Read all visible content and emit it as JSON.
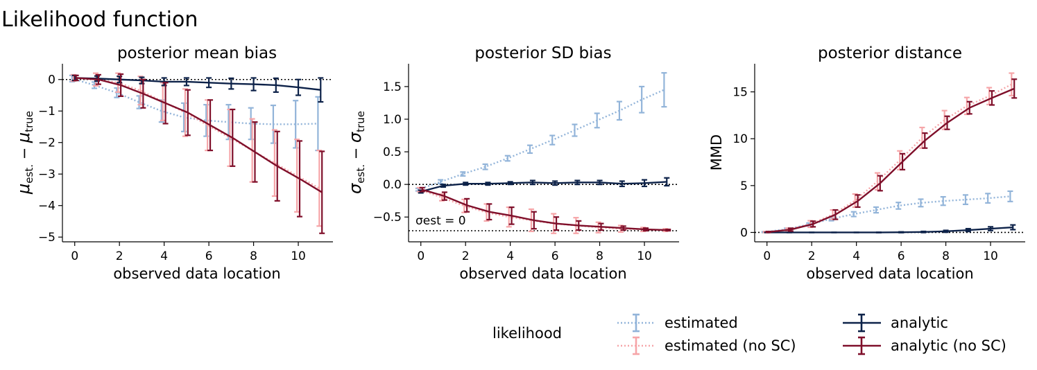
{
  "figure_title": "Likelihood function",
  "colors": {
    "estimated": "#92b4d9",
    "estimated_no_sc": "#f6a5a8",
    "analytic": "#0d2249",
    "analytic_no_sc": "#7f0f2a"
  },
  "legend": {
    "title": "likelihood",
    "entries": [
      {
        "key": "estimated",
        "label": "estimated"
      },
      {
        "key": "estimated_no_sc",
        "label": "estimated (no SC)"
      },
      {
        "key": "analytic",
        "label": "analytic"
      },
      {
        "key": "analytic_no_sc",
        "label": "analytic (no SC)"
      }
    ]
  },
  "chart_data": [
    {
      "id": "mean",
      "type": "line",
      "title": "posterior mean bias",
      "xlabel": "observed data location",
      "ylabel": "μest. − μtrue",
      "xlim": [
        -0.55,
        11.55
      ],
      "ylim": [
        -5.15,
        0.5
      ],
      "xticks": [
        0,
        2,
        4,
        6,
        8,
        10
      ],
      "yticks": [
        0,
        -1,
        -2,
        -3,
        -4,
        -5
      ],
      "hline": 0,
      "x": [
        0,
        1,
        2,
        3,
        4,
        5,
        6,
        7,
        8,
        9,
        10,
        11
      ],
      "series": [
        {
          "key": "estimated",
          "offset": -0.12,
          "values": [
            0.03,
            -0.18,
            -0.42,
            -0.72,
            -1.0,
            -1.2,
            -1.3,
            -1.35,
            -1.4,
            -1.42,
            -1.42,
            -1.4
          ],
          "errors": [
            0.1,
            0.1,
            0.15,
            0.2,
            0.35,
            0.45,
            0.5,
            0.55,
            0.5,
            0.6,
            0.75,
            0.85
          ]
        },
        {
          "key": "estimated_no_sc",
          "offset": -0.06,
          "values": [
            0.05,
            0.0,
            -0.1,
            -0.35,
            -0.7,
            -1.05,
            -1.45,
            -1.85,
            -2.25,
            -2.65,
            -3.05,
            -3.45
          ],
          "errors": [
            0.1,
            0.2,
            0.3,
            0.45,
            0.6,
            0.75,
            0.8,
            0.9,
            1.0,
            1.05,
            1.15,
            1.2
          ]
        },
        {
          "key": "analytic",
          "offset": 0.0,
          "values": [
            0.05,
            0.03,
            0.0,
            -0.03,
            -0.07,
            -0.07,
            -0.1,
            -0.13,
            -0.15,
            -0.18,
            -0.25,
            -0.33
          ],
          "errors": [
            0.08,
            0.08,
            0.1,
            0.1,
            0.12,
            0.12,
            0.15,
            0.17,
            0.2,
            0.22,
            0.25,
            0.38
          ]
        },
        {
          "key": "analytic_no_sc",
          "offset": 0.06,
          "values": [
            0.05,
            0.0,
            -0.18,
            -0.45,
            -0.75,
            -1.05,
            -1.45,
            -1.85,
            -2.3,
            -2.75,
            -3.15,
            -3.58
          ],
          "errors": [
            0.08,
            0.15,
            0.35,
            0.45,
            0.65,
            0.72,
            0.8,
            0.9,
            0.95,
            1.1,
            1.2,
            1.3
          ]
        }
      ]
    },
    {
      "id": "sd",
      "type": "line",
      "title": "posterior SD bias",
      "xlabel": "observed data location",
      "ylabel": "σest. − σtrue",
      "xlim": [
        -0.55,
        11.55
      ],
      "ylim": [
        -0.88,
        1.85
      ],
      "xticks": [
        0,
        2,
        4,
        6,
        8,
        10
      ],
      "yticks": [
        1.5,
        1.0,
        0.5,
        0.0,
        -0.5
      ],
      "ytick_labels": [
        "1.5",
        "1.0",
        "0.5",
        "0.0",
        "−0.5"
      ],
      "hline": 0,
      "hline2": -0.71,
      "annotation": "σest = 0",
      "x": [
        0,
        1,
        2,
        3,
        4,
        5,
        6,
        7,
        8,
        9,
        10,
        11
      ],
      "series": [
        {
          "key": "estimated",
          "offset": -0.12,
          "values": [
            -0.08,
            0.04,
            0.16,
            0.27,
            0.4,
            0.54,
            0.68,
            0.83,
            0.98,
            1.13,
            1.3,
            1.45
          ],
          "errors": [
            0.02,
            0.03,
            0.03,
            0.04,
            0.04,
            0.06,
            0.07,
            0.09,
            0.11,
            0.14,
            0.2,
            0.26
          ]
        },
        {
          "key": "estimated_no_sc",
          "offset": -0.06,
          "values": [
            -0.08,
            -0.2,
            -0.33,
            -0.43,
            -0.5,
            -0.55,
            -0.6,
            -0.63,
            -0.66,
            -0.68,
            -0.69,
            -0.7
          ],
          "errors": [
            0.03,
            0.05,
            0.1,
            0.13,
            0.15,
            0.17,
            0.15,
            0.12,
            0.08,
            0.05,
            0.03,
            0.02
          ]
        },
        {
          "key": "analytic",
          "offset": 0.0,
          "values": [
            -0.11,
            -0.02,
            0.01,
            0.01,
            0.02,
            0.03,
            0.02,
            0.03,
            0.03,
            0.01,
            0.02,
            0.04
          ],
          "errors": [
            0.02,
            0.02,
            0.02,
            0.02,
            0.02,
            0.03,
            0.03,
            0.03,
            0.03,
            0.04,
            0.05,
            0.06
          ]
        },
        {
          "key": "analytic_no_sc",
          "offset": 0.06,
          "values": [
            -0.08,
            -0.18,
            -0.32,
            -0.42,
            -0.48,
            -0.55,
            -0.6,
            -0.63,
            -0.65,
            -0.67,
            -0.69,
            -0.7
          ],
          "errors": [
            0.03,
            0.06,
            0.1,
            0.12,
            0.13,
            0.13,
            0.1,
            0.07,
            0.05,
            0.03,
            0.02,
            0.01
          ]
        }
      ]
    },
    {
      "id": "dist",
      "type": "line",
      "title": "posterior distance",
      "xlabel": "observed data location",
      "ylabel": "MMD",
      "xlim": [
        -0.55,
        11.55
      ],
      "ylim": [
        -1.0,
        18.0
      ],
      "xticks": [
        0,
        2,
        4,
        6,
        8,
        10
      ],
      "yticks": [
        15,
        10,
        5,
        0
      ],
      "hline": 0,
      "x": [
        0,
        1,
        2,
        3,
        4,
        5,
        6,
        7,
        8,
        9,
        10,
        11
      ],
      "series": [
        {
          "key": "estimated",
          "offset": -0.12,
          "values": [
            0.05,
            0.35,
            0.85,
            1.45,
            1.95,
            2.4,
            2.85,
            3.15,
            3.35,
            3.5,
            3.65,
            3.85
          ],
          "errors": [
            0.02,
            0.1,
            0.15,
            0.2,
            0.25,
            0.3,
            0.35,
            0.4,
            0.45,
            0.5,
            0.5,
            0.55
          ]
        },
        {
          "key": "estimated_no_sc",
          "offset": -0.06,
          "values": [
            0.05,
            0.3,
            0.9,
            1.9,
            3.4,
            5.45,
            7.7,
            10.1,
            12.0,
            13.5,
            14.55,
            15.8
          ],
          "errors": [
            0.05,
            0.15,
            0.35,
            0.5,
            0.7,
            0.9,
            1.0,
            1.1,
            1.0,
            0.9,
            0.9,
            1.2
          ]
        },
        {
          "key": "analytic",
          "offset": 0.0,
          "values": [
            0.0,
            0.0,
            0.0,
            0.0,
            0.0,
            0.0,
            0.02,
            0.05,
            0.12,
            0.25,
            0.4,
            0.55
          ],
          "errors": [
            0.01,
            0.01,
            0.01,
            0.01,
            0.01,
            0.02,
            0.04,
            0.06,
            0.1,
            0.15,
            0.2,
            0.25
          ]
        },
        {
          "key": "analytic_no_sc",
          "offset": 0.06,
          "values": [
            0.05,
            0.3,
            0.9,
            1.9,
            3.35,
            5.25,
            7.55,
            9.8,
            11.7,
            13.3,
            14.35,
            15.35
          ],
          "errors": [
            0.05,
            0.15,
            0.3,
            0.5,
            0.65,
            0.8,
            0.85,
            0.8,
            0.7,
            0.65,
            0.75,
            1.0
          ]
        }
      ]
    }
  ]
}
